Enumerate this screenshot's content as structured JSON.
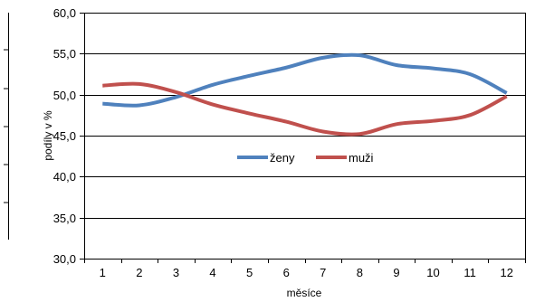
{
  "chart_data": {
    "type": "line",
    "xlabel": "měsíce",
    "ylabel": "podíly v %",
    "ylim": [
      30,
      60
    ],
    "yticks": [
      "30,0",
      "35,0",
      "40,0",
      "45,0",
      "50,0",
      "55,0",
      "60,0"
    ],
    "x": [
      "1",
      "2",
      "3",
      "4",
      "5",
      "6",
      "7",
      "8",
      "9",
      "10",
      "11",
      "12"
    ],
    "series": [
      {
        "name": "ženy",
        "color": "#4f81bd",
        "values": [
          48.9,
          48.7,
          49.7,
          51.2,
          52.3,
          53.3,
          54.5,
          54.8,
          53.6,
          53.2,
          52.5,
          50.2
        ]
      },
      {
        "name": "muži",
        "color": "#c0504d",
        "values": [
          51.1,
          51.3,
          50.3,
          48.8,
          47.7,
          46.7,
          45.5,
          45.2,
          46.4,
          46.8,
          47.5,
          49.8
        ]
      }
    ],
    "grid": true,
    "legend_position": "inside-center"
  }
}
